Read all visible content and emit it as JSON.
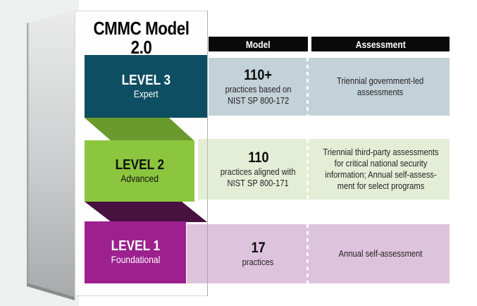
{
  "title": "CMMC Model 2.0",
  "columns": {
    "model": "Model",
    "assessment": "Assessment"
  },
  "levels": [
    {
      "label": "LEVEL 3",
      "subtitle": "Expert",
      "model_value": "110+",
      "model_desc": "practices based on\nNIST SP 800-172",
      "assessment": "Triennial government-led\nassessments"
    },
    {
      "label": "LEVEL 2",
      "subtitle": "Advanced",
      "model_value": "110",
      "model_desc": "practices aligned with\nNIST SP 800-171",
      "assessment": "Triennial third-party assessments\nfor critical national security\ninformation; Annual self-assess-\nment for select programs"
    },
    {
      "label": "LEVEL 1",
      "subtitle": "Foundational",
      "model_value": "17",
      "model_desc": "practices",
      "assessment": "Annual self-assessment"
    }
  ],
  "colors": {
    "header_bar": "#0a0a0a",
    "level3_block": "#0e4e62",
    "level3_band": "#c3d2d8",
    "level2_block": "#8cc63f",
    "level2_band": "#e4eed7",
    "ribbon_green": "#6a9a2d",
    "level1_block": "#9d208e",
    "level1_band": "#dec3dc",
    "ribbon_purple": "#471140",
    "backdrop_gray": "#eef0ef"
  }
}
